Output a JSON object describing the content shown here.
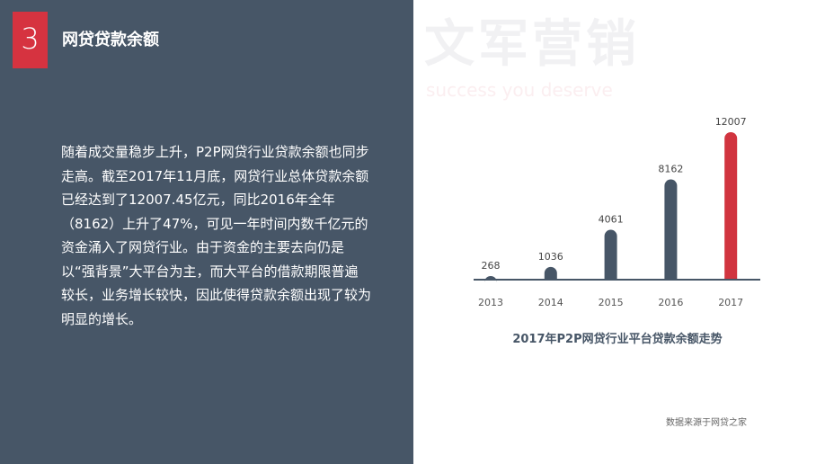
{
  "section": {
    "number": "3",
    "title": "网贷贷款余额"
  },
  "body_text": "随着成交量稳步上升，P2P网贷行业贷款余额也同步走高。截至2017年11月底，网贷行业总体贷款余额已经达到了12007.45亿元，同比2016年全年（8162）上升了47%，可见一年时间内数千亿元的资金涌入了网贷行业。由于资金的主要去向仍是以“强背景”大平台为主，而大平台的借款期限普遍较长，业务增长较快，因此使得贷款余额出现了较为明显的增长。",
  "watermark": {
    "main": "文军营销",
    "sub": "success you deserve"
  },
  "chart_data": {
    "type": "bar",
    "title": "2017年P2P网贷行业平台贷款余额走势",
    "categories": [
      "2013",
      "2014",
      "2015",
      "2016",
      "2017"
    ],
    "values": [
      268,
      1036,
      4061,
      8162,
      12007
    ],
    "data_labels": [
      "268",
      "1036",
      "4061",
      "8162",
      "12007"
    ],
    "colors": [
      "#475667",
      "#475667",
      "#475667",
      "#475667",
      "#d1343f"
    ],
    "grid": false,
    "ylim": [
      0,
      12007
    ]
  },
  "source": "数据来源于网贷之家",
  "colors": {
    "panel": "#475667",
    "accent": "#d63340"
  }
}
